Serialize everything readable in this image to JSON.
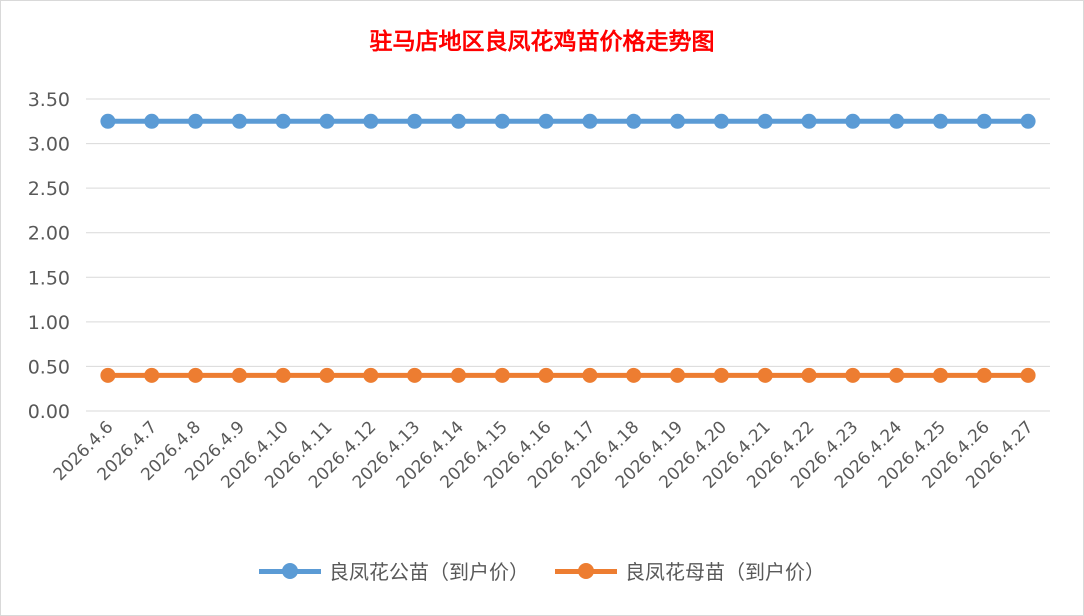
{
  "chart_data": {
    "type": "line",
    "title": "驻马店地区良凤花鸡苗价格走势图",
    "xlabel": "",
    "ylabel": "",
    "ylim": [
      0,
      3.5
    ],
    "yticks": [
      "0.00",
      "0.50",
      "1.00",
      "1.50",
      "2.00",
      "2.50",
      "3.00",
      "3.50"
    ],
    "grid": true,
    "legend_position": "bottom",
    "categories": [
      "2026.4.6",
      "2026.4.7",
      "2026.4.8",
      "2026.4.9",
      "2026.4.10",
      "2026.4.11",
      "2026.4.12",
      "2026.4.13",
      "2026.4.14",
      "2026.4.15",
      "2026.4.16",
      "2026.4.17",
      "2026.4.18",
      "2026.4.19",
      "2026.4.20",
      "2026.4.21",
      "2026.4.22",
      "2026.4.23",
      "2026.4.24",
      "2026.4.25",
      "2026.4.26",
      "2026.4.27"
    ],
    "series": [
      {
        "name": "良凤花公苗（到户价）",
        "color": "#5b9bd5",
        "values": [
          3.25,
          3.25,
          3.25,
          3.25,
          3.25,
          3.25,
          3.25,
          3.25,
          3.25,
          3.25,
          3.25,
          3.25,
          3.25,
          3.25,
          3.25,
          3.25,
          3.25,
          3.25,
          3.25,
          3.25,
          3.25,
          3.25
        ]
      },
      {
        "name": "良凤花母苗（到户价）",
        "color": "#ed7d31",
        "values": [
          0.4,
          0.4,
          0.4,
          0.4,
          0.4,
          0.4,
          0.4,
          0.4,
          0.4,
          0.4,
          0.4,
          0.4,
          0.4,
          0.4,
          0.4,
          0.4,
          0.4,
          0.4,
          0.4,
          0.4,
          0.4,
          0.4
        ]
      }
    ]
  }
}
